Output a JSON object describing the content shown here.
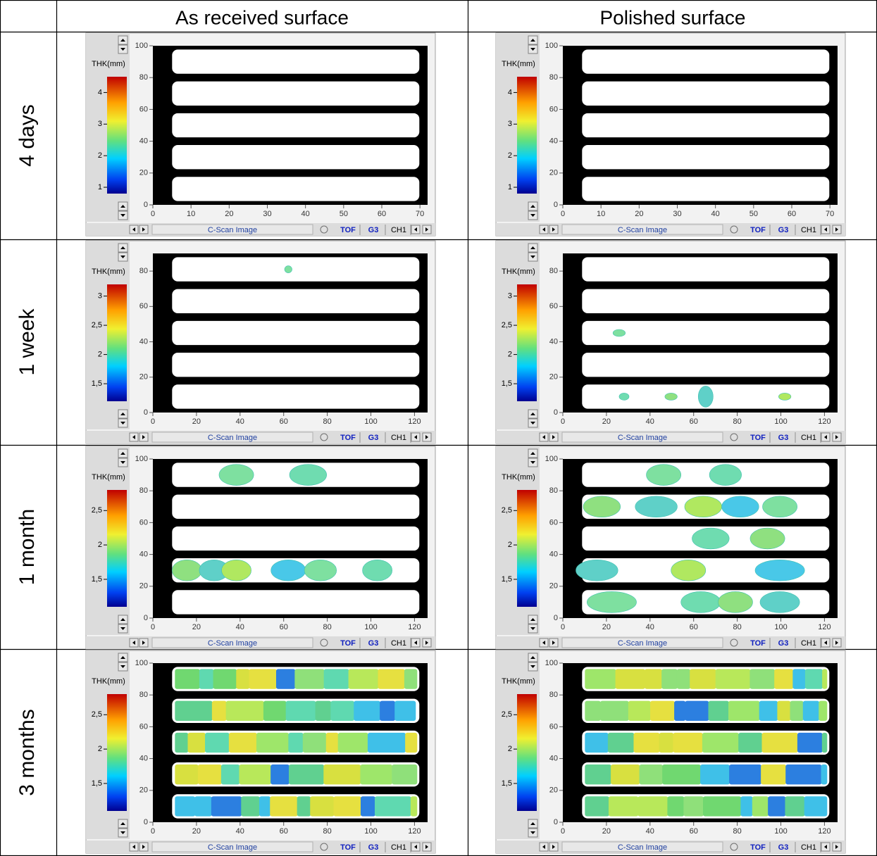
{
  "header": {
    "columns": [
      "As received surface",
      "Polished surface"
    ]
  },
  "rows": [
    {
      "label": "4 days",
      "panels": [
        {
          "colorbar_label": "THK(mm)",
          "clim": [
            0.8,
            4.5
          ],
          "colorbar_ticks": [
            1,
            2,
            3,
            4
          ],
          "xlim": [
            0,
            72
          ],
          "xticks": [
            0,
            10,
            20,
            30,
            40,
            50,
            60,
            70
          ],
          "ylim": [
            0,
            100
          ],
          "yticks": [
            0,
            20,
            40,
            60,
            80,
            100
          ],
          "footer": "C-Scan Image",
          "buttons": [
            "TOF",
            "G3",
            "CH1"
          ]
        },
        {
          "colorbar_label": "THK(mm)",
          "clim": [
            0.8,
            4.5
          ],
          "colorbar_ticks": [
            1,
            2,
            3,
            4
          ],
          "xlim": [
            0,
            72
          ],
          "xticks": [
            0,
            10,
            20,
            30,
            40,
            50,
            60,
            70
          ],
          "ylim": [
            0,
            100
          ],
          "yticks": [
            0,
            20,
            40,
            60,
            80,
            100
          ],
          "footer": "C-Scan Image",
          "buttons": [
            "TOF",
            "G3",
            "CH1"
          ]
        }
      ]
    },
    {
      "label": "1 week",
      "panels": [
        {
          "colorbar_label": "THK(mm)",
          "clim": [
            1.2,
            3.2
          ],
          "colorbar_ticks": [
            {
              "value": 1.5,
              "label": "1,5"
            },
            2,
            {
              "value": 2.5,
              "label": "2,5"
            },
            3
          ],
          "xlim": [
            0,
            126
          ],
          "xticks": [
            0,
            20,
            40,
            60,
            80,
            100,
            120
          ],
          "ylim": [
            0,
            90
          ],
          "yticks": [
            0,
            20,
            40,
            60,
            80
          ],
          "footer": "C-Scan Image",
          "buttons": [
            "TOF",
            "G3",
            "CH1"
          ]
        },
        {
          "colorbar_label": "THK(mm)",
          "clim": [
            1.2,
            3.2
          ],
          "colorbar_ticks": [
            {
              "value": 1.5,
              "label": "1,5"
            },
            2,
            {
              "value": 2.5,
              "label": "2,5"
            },
            3
          ],
          "xlim": [
            0,
            126
          ],
          "xticks": [
            0,
            20,
            40,
            60,
            80,
            100,
            120
          ],
          "ylim": [
            0,
            90
          ],
          "yticks": [
            0,
            20,
            40,
            60,
            80
          ],
          "footer": "C-Scan Image",
          "buttons": [
            "TOF",
            "G3",
            "CH1"
          ]
        }
      ]
    },
    {
      "label": "1 month",
      "panels": [
        {
          "colorbar_label": "THK(mm)",
          "clim": [
            1.1,
            2.8
          ],
          "colorbar_ticks": [
            {
              "value": 1.5,
              "label": "1,5"
            },
            2,
            {
              "value": 2.5,
              "label": "2,5"
            }
          ],
          "xlim": [
            0,
            126
          ],
          "xticks": [
            0,
            20,
            40,
            60,
            80,
            100,
            120
          ],
          "ylim": [
            0,
            100
          ],
          "yticks": [
            0,
            20,
            40,
            60,
            80,
            100
          ],
          "footer": "C-Scan Image",
          "buttons": [
            "TOF",
            "G3",
            "CH1"
          ]
        },
        {
          "colorbar_label": "THK(mm)",
          "clim": [
            1.1,
            2.8
          ],
          "colorbar_ticks": [
            {
              "value": 1.5,
              "label": "1,5"
            },
            2,
            {
              "value": 2.5,
              "label": "2,5"
            }
          ],
          "xlim": [
            0,
            126
          ],
          "xticks": [
            0,
            20,
            40,
            60,
            80,
            100,
            120
          ],
          "ylim": [
            0,
            100
          ],
          "yticks": [
            0,
            20,
            40,
            60,
            80,
            100
          ],
          "footer": "C-Scan Image",
          "buttons": [
            "TOF",
            "G3",
            "CH1"
          ]
        }
      ]
    },
    {
      "label": "3 months",
      "panels": [
        {
          "colorbar_label": "THK(mm)",
          "clim": [
            1.1,
            2.8
          ],
          "colorbar_ticks": [
            {
              "value": 1.5,
              "label": "1,5"
            },
            2,
            {
              "value": 2.5,
              "label": "2,5"
            }
          ],
          "xlim": [
            0,
            126
          ],
          "xticks": [
            0,
            20,
            40,
            60,
            80,
            100,
            120
          ],
          "ylim": [
            0,
            100
          ],
          "yticks": [
            0,
            20,
            40,
            60,
            80,
            100
          ],
          "footer": "C-Scan Image",
          "buttons": [
            "TOF",
            "G3",
            "CH1"
          ]
        },
        {
          "colorbar_label": "THK(mm)",
          "clim": [
            1.1,
            2.8
          ],
          "colorbar_ticks": [
            {
              "value": 1.5,
              "label": "1,5"
            },
            2,
            {
              "value": 2.5,
              "label": "2,5"
            }
          ],
          "xlim": [
            0,
            126
          ],
          "xticks": [
            0,
            20,
            40,
            60,
            80,
            100,
            120
          ],
          "ylim": [
            0,
            100
          ],
          "yticks": [
            0,
            20,
            40,
            60,
            80,
            100
          ],
          "footer": "C-Scan Image",
          "buttons": [
            "TOF",
            "G3",
            "CH1"
          ]
        }
      ]
    }
  ]
}
